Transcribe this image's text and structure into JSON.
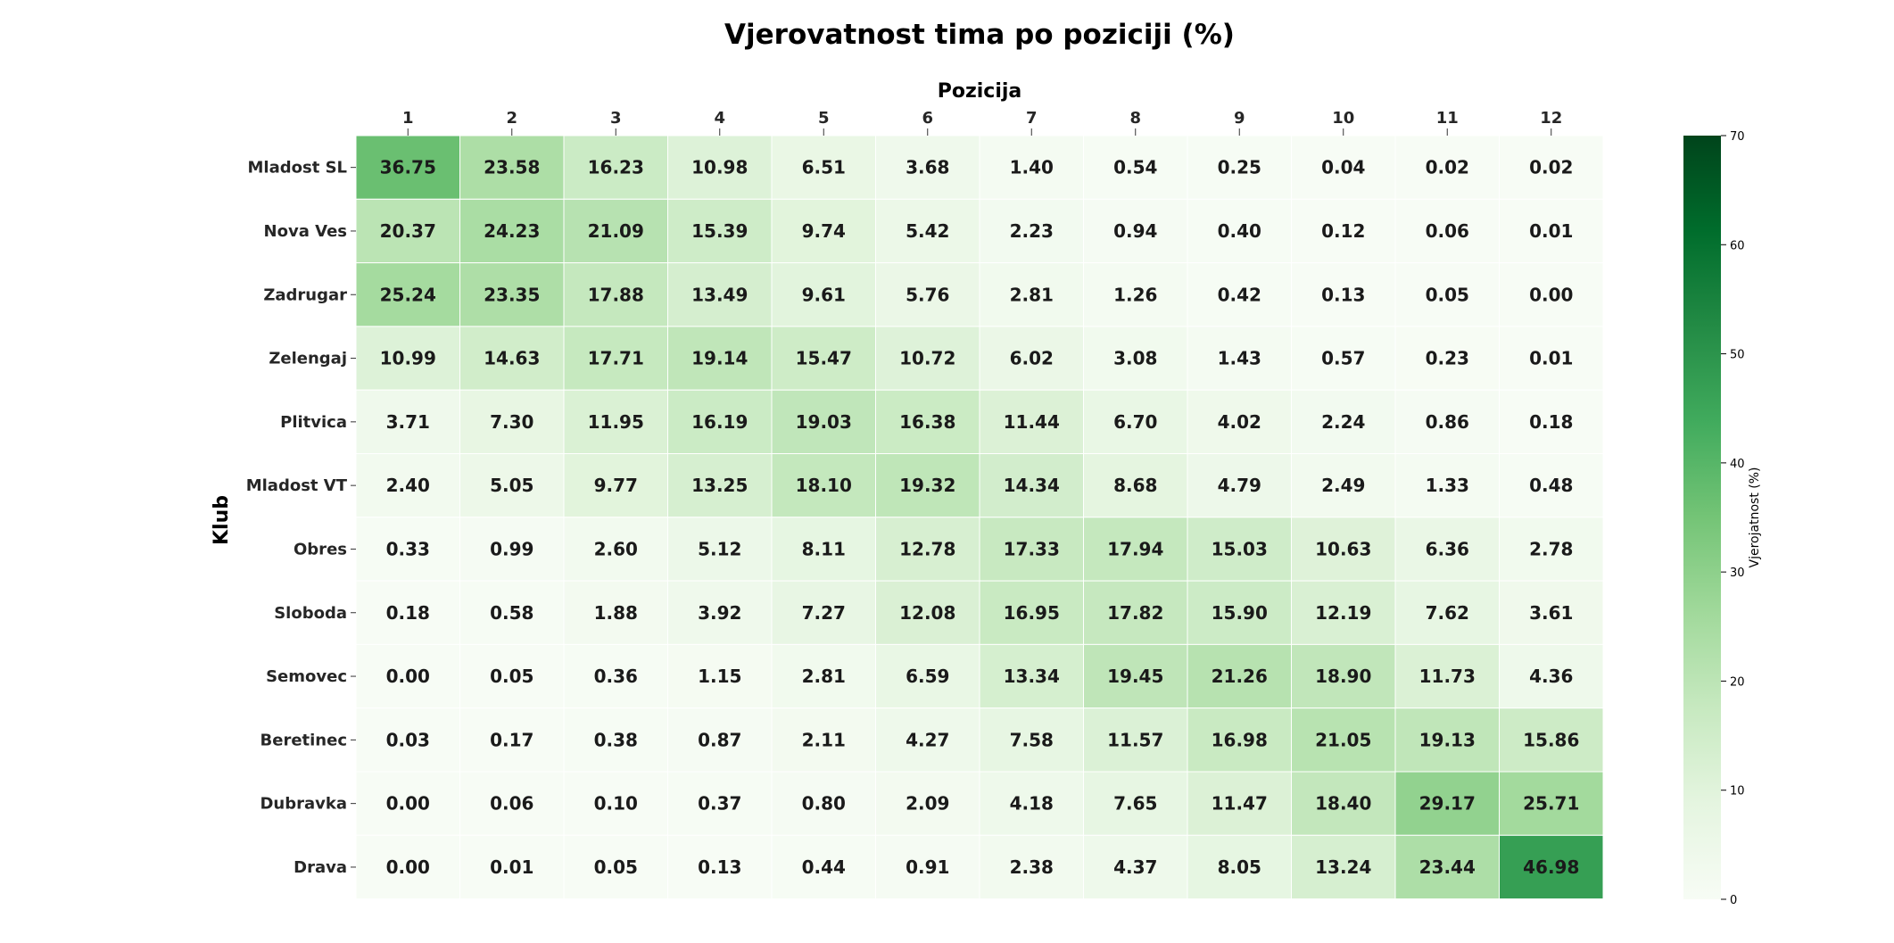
{
  "chart_data": {
    "type": "heatmap",
    "title": "Vjerovatnost tima po poziciji (%)",
    "xlabel": "Pozicija",
    "ylabel": "Klub",
    "colorbar_label": "Vjerojatnost (%)",
    "colorbar_ticks": [
      "0",
      "10",
      "20",
      "30",
      "40",
      "50",
      "60",
      "70"
    ],
    "vmin": 0,
    "vmax": 70,
    "colormap": "Greens",
    "x_position": "top",
    "columns": [
      "1",
      "2",
      "3",
      "4",
      "5",
      "6",
      "7",
      "8",
      "9",
      "10",
      "11",
      "12"
    ],
    "rows": [
      "Mladost SL",
      "Nova Ves",
      "Zadrugar",
      "Zelengaj",
      "Plitvica",
      "Mladost VT",
      "Obres",
      "Sloboda",
      "Semovec",
      "Beretinec",
      "Dubravka",
      "Drava"
    ],
    "values": [
      [
        "36.75",
        "23.58",
        "16.23",
        "10.98",
        "6.51",
        "3.68",
        "1.40",
        "0.54",
        "0.25",
        "0.04",
        "0.02",
        "0.02"
      ],
      [
        "20.37",
        "24.23",
        "21.09",
        "15.39",
        "9.74",
        "5.42",
        "2.23",
        "0.94",
        "0.40",
        "0.12",
        "0.06",
        "0.01"
      ],
      [
        "25.24",
        "23.35",
        "17.88",
        "13.49",
        "9.61",
        "5.76",
        "2.81",
        "1.26",
        "0.42",
        "0.13",
        "0.05",
        "0.00"
      ],
      [
        "10.99",
        "14.63",
        "17.71",
        "19.14",
        "15.47",
        "10.72",
        "6.02",
        "3.08",
        "1.43",
        "0.57",
        "0.23",
        "0.01"
      ],
      [
        "3.71",
        "7.30",
        "11.95",
        "16.19",
        "19.03",
        "16.38",
        "11.44",
        "6.70",
        "4.02",
        "2.24",
        "0.86",
        "0.18"
      ],
      [
        "2.40",
        "5.05",
        "9.77",
        "13.25",
        "18.10",
        "19.32",
        "14.34",
        "8.68",
        "4.79",
        "2.49",
        "1.33",
        "0.48"
      ],
      [
        "0.33",
        "0.99",
        "2.60",
        "5.12",
        "8.11",
        "12.78",
        "17.33",
        "17.94",
        "15.03",
        "10.63",
        "6.36",
        "2.78"
      ],
      [
        "0.18",
        "0.58",
        "1.88",
        "3.92",
        "7.27",
        "12.08",
        "16.95",
        "17.82",
        "15.90",
        "12.19",
        "7.62",
        "3.61"
      ],
      [
        "0.00",
        "0.05",
        "0.36",
        "1.15",
        "2.81",
        "6.59",
        "13.34",
        "19.45",
        "21.26",
        "18.90",
        "11.73",
        "4.36"
      ],
      [
        "0.03",
        "0.17",
        "0.38",
        "0.87",
        "2.11",
        "4.27",
        "7.58",
        "11.57",
        "16.98",
        "21.05",
        "19.13",
        "15.86"
      ],
      [
        "0.00",
        "0.06",
        "0.10",
        "0.37",
        "0.80",
        "2.09",
        "4.18",
        "7.65",
        "11.47",
        "18.40",
        "29.17",
        "25.71"
      ],
      [
        "0.00",
        "0.01",
        "0.05",
        "0.13",
        "0.44",
        "0.91",
        "2.38",
        "4.37",
        "8.05",
        "13.24",
        "23.44",
        "46.98"
      ]
    ]
  }
}
